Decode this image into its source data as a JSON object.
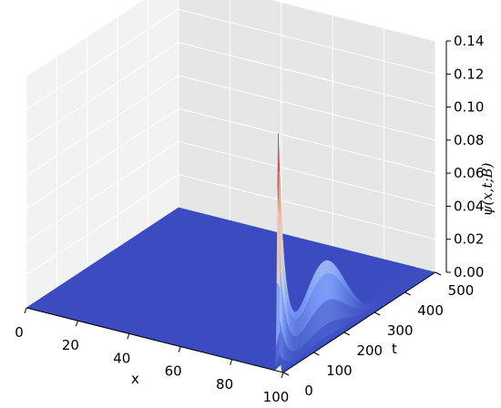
{
  "chart_data": {
    "type": "surface3d",
    "title": "",
    "xlabel": "x",
    "ylabel": "t",
    "zlabel": "ψ(x,t;B)",
    "xlim": [
      0,
      100
    ],
    "ylim": [
      0,
      500
    ],
    "zlim": [
      0,
      0.14
    ],
    "x_ticks": [
      "0",
      "20",
      "40",
      "60",
      "80",
      "100"
    ],
    "y_ticks": [
      "0",
      "100",
      "200",
      "300",
      "400",
      "500"
    ],
    "z_ticks": [
      "0.00",
      "0.02",
      "0.04",
      "0.06",
      "0.08",
      "0.10",
      "0.12",
      "0.14"
    ],
    "grid": true,
    "colormap": "coolwarm",
    "pane_color": "#e6e6e6",
    "surface_shape": {
      "peak_position_x": 98,
      "peak_time_t": 0,
      "peak_value": 0.14,
      "ridge_along_t_at_x": 98,
      "ridge_value_at_t_150": 0.05,
      "ridge_value_at_t_500": 0.0
    }
  }
}
